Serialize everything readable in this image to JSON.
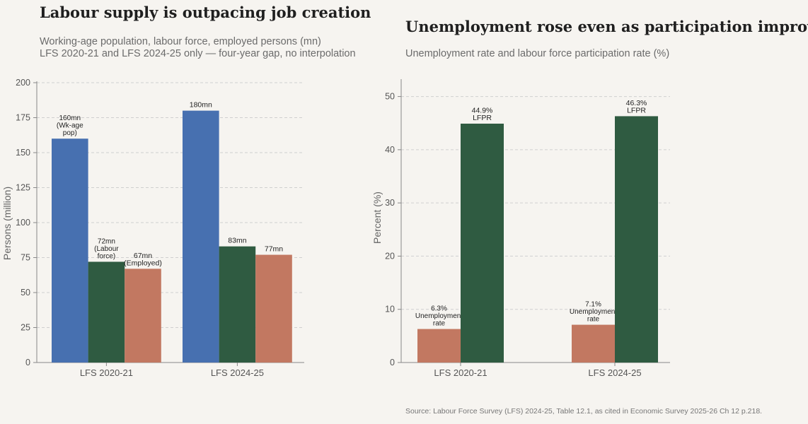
{
  "colors": {
    "blue": "#4770b0",
    "green": "#2f5b41",
    "salmon": "#c27861",
    "grid": "#cfcfcf",
    "axis": "#888888",
    "tick_text": "#555555",
    "label_text": "#222222"
  },
  "left": {
    "title": "Labour supply is outpacing job creation",
    "subtitle_1": "Working-age population, labour force, employed persons (mn)",
    "subtitle_2": "LFS 2020-21 and LFS 2024-25 only — four-year gap, no interpolation"
  },
  "right": {
    "title": "Unemployment rose even as participation improved",
    "subtitle_1": "Unemployment rate and labour force participation rate (%)"
  },
  "source": "Source: Labour Force Survey (LFS) 2024-25, Table 12.1, as cited in Economic Survey 2025-26 Ch 12 p.218.",
  "chart_data": [
    {
      "type": "bar",
      "title": "Labour supply is outpacing job creation",
      "ylabel": "Persons (million)",
      "ylim": [
        0,
        200
      ],
      "yticks": [
        0,
        25,
        50,
        75,
        100,
        125,
        150,
        175,
        200
      ],
      "categories": [
        "LFS 2020-21",
        "LFS 2024-25"
      ],
      "grid": true,
      "series": [
        {
          "color": "blue",
          "values": [
            160,
            180
          ],
          "labels": [
            [
              "160mn",
              "(Wk-age",
              "pop)"
            ],
            [
              "180mn"
            ]
          ]
        },
        {
          "color": "green",
          "values": [
            72,
            83
          ],
          "labels": [
            [
              "72mn",
              "(Labour",
              "force)"
            ],
            [
              "83mn"
            ]
          ]
        },
        {
          "color": "salmon",
          "values": [
            67,
            77
          ],
          "labels": [
            [
              "67mn",
              "(Employed)"
            ],
            [
              "77mn"
            ]
          ]
        }
      ]
    },
    {
      "type": "bar",
      "title": "Unemployment rose even as participation improved",
      "ylabel": "Percent (%)",
      "ylim": [
        0,
        53
      ],
      "yticks": [
        0,
        10,
        20,
        30,
        40,
        50
      ],
      "categories": [
        "LFS 2020-21",
        "LFS 2024-25"
      ],
      "grid": true,
      "series": [
        {
          "color": "salmon",
          "values": [
            6.3,
            7.1
          ],
          "labels": [
            [
              "6.3%",
              "Unemployment",
              "rate"
            ],
            [
              "7.1%",
              "Unemployment",
              "rate"
            ]
          ]
        },
        {
          "color": "green",
          "values": [
            44.9,
            46.3
          ],
          "labels": [
            [
              "44.9%",
              "LFPR"
            ],
            [
              "46.3%",
              "LFPR"
            ]
          ]
        }
      ]
    }
  ]
}
